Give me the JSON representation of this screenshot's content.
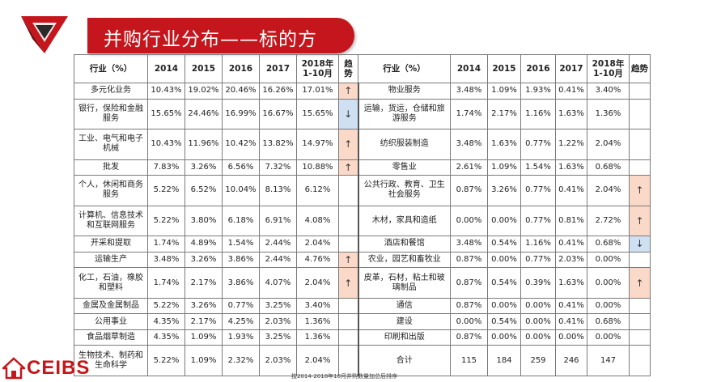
{
  "title": "并购行业分布——标的方",
  "columns_left": [
    "行业（%）",
    "2014",
    "2015",
    "2016",
    "2017",
    "2018年\n1-10月",
    "趋势"
  ],
  "columns_right": [
    "行业（%）",
    "2014",
    "2015",
    "2016",
    "2017",
    "2018年\n1-10月",
    "趋势"
  ],
  "rows": [
    {
      "l": [
        "多元化业务",
        "10.43%",
        "19.02%",
        "20.46%",
        "16.26%",
        "17.01%",
        "↑"
      ],
      "lt": "up",
      "r": [
        "物业服务",
        "3.48%",
        "1.09%",
        "1.93%",
        "0.41%",
        "3.40%",
        ""
      ],
      "rt": ""
    },
    {
      "l": [
        "银行，保险和金融服务",
        "15.65%",
        "24.46%",
        "16.99%",
        "16.67%",
        "15.65%",
        "↓"
      ],
      "lt": "down",
      "r": [
        "运输，货运，仓储和旅游服务",
        "1.74%",
        "2.17%",
        "1.16%",
        "1.63%",
        "1.36%",
        ""
      ],
      "rt": ""
    },
    {
      "l": [
        "工业、电气和电子机械",
        "10.43%",
        "11.96%",
        "10.42%",
        "13.82%",
        "14.97%",
        "↑"
      ],
      "lt": "up",
      "r": [
        "纺织服装制造",
        "3.48%",
        "1.63%",
        "0.77%",
        "1.22%",
        "2.04%",
        ""
      ],
      "rt": ""
    },
    {
      "l": [
        "批发",
        "7.83%",
        "3.26%",
        "6.56%",
        "7.32%",
        "10.88%",
        "↑"
      ],
      "lt": "up",
      "r": [
        "零售业",
        "2.61%",
        "1.09%",
        "1.54%",
        "1.63%",
        "0.68%",
        ""
      ],
      "rt": ""
    },
    {
      "l": [
        "个人，休闲和商务服务",
        "5.22%",
        "6.52%",
        "10.04%",
        "8.13%",
        "6.12%",
        ""
      ],
      "lt": "",
      "r": [
        "公共行政、教育、卫生社会服务",
        "0.87%",
        "3.26%",
        "0.77%",
        "0.41%",
        "2.04%",
        "↑"
      ],
      "rt": "up"
    },
    {
      "l": [
        "计算机、信息技术和互联网服务",
        "5.22%",
        "3.80%",
        "6.18%",
        "6.91%",
        "4.08%",
        ""
      ],
      "lt": "",
      "r": [
        "木材，家具和造纸",
        "0.00%",
        "0.00%",
        "0.77%",
        "0.81%",
        "2.72%",
        "↑"
      ],
      "rt": "up"
    },
    {
      "l": [
        "开采和提取",
        "1.74%",
        "4.89%",
        "1.54%",
        "2.44%",
        "2.04%",
        ""
      ],
      "lt": "",
      "r": [
        "酒店和餐馆",
        "3.48%",
        "0.54%",
        "1.16%",
        "0.41%",
        "0.68%",
        "↓"
      ],
      "rt": "down"
    },
    {
      "l": [
        "运输生产",
        "3.48%",
        "3.26%",
        "3.86%",
        "2.44%",
        "4.76%",
        "↑"
      ],
      "lt": "up",
      "r": [
        "农业，园艺和畜牧业",
        "0.87%",
        "0.00%",
        "0.77%",
        "2.03%",
        "0.00%",
        ""
      ],
      "rt": ""
    },
    {
      "l": [
        "化工，石油，橡胶和塑料",
        "1.74%",
        "2.17%",
        "3.86%",
        "4.07%",
        "2.04%",
        "↑"
      ],
      "lt": "up",
      "r": [
        "皮革，石材，粘土和玻璃制品",
        "0.87%",
        "0.54%",
        "0.39%",
        "1.63%",
        "0.00%",
        "↑"
      ],
      "rt": "up"
    },
    {
      "l": [
        "金属及金属制品",
        "5.22%",
        "3.26%",
        "0.77%",
        "3.25%",
        "3.40%",
        ""
      ],
      "lt": "",
      "r": [
        "通信",
        "0.87%",
        "0.00%",
        "0.00%",
        "0.41%",
        "0.00%",
        ""
      ],
      "rt": ""
    },
    {
      "l": [
        "公用事业",
        "4.35%",
        "2.17%",
        "4.25%",
        "2.03%",
        "1.36%",
        ""
      ],
      "lt": "",
      "r": [
        "建设",
        "0.00%",
        "0.54%",
        "0.00%",
        "0.41%",
        "0.68%",
        ""
      ],
      "rt": ""
    },
    {
      "l": [
        "食品烟草制造",
        "4.35%",
        "1.09%",
        "1.93%",
        "3.25%",
        "1.36%",
        ""
      ],
      "lt": "",
      "r": [
        "印刷和出版",
        "0.87%",
        "0.00%",
        "0.00%",
        "0.00%",
        "0.00%",
        ""
      ],
      "rt": ""
    },
    {
      "l": [
        "生物技术、制药和生命科学",
        "5.22%",
        "1.09%",
        "2.32%",
        "2.03%",
        "2.04%",
        ""
      ],
      "lt": "",
      "r": [
        "合计",
        "115",
        "184",
        "259",
        "246",
        "147",
        ""
      ],
      "rt": ""
    }
  ],
  "logo_text": "CEIBS",
  "footnote": "按2014-2018年10月并购数量加总后排序",
  "colors": {
    "brand_red": "#c4161c",
    "trend_up_bg": "#fbd9c8",
    "trend_down_bg": "#cfe0f2"
  }
}
